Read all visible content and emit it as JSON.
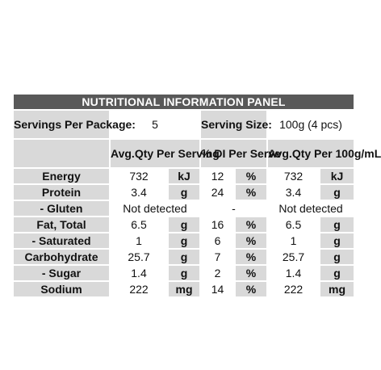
{
  "header": {
    "title": "NUTRITIONAL INFORMATION PANEL"
  },
  "servings": {
    "label": "Servings Per Package:",
    "value": "5"
  },
  "serving_size": {
    "label": "Serving Size:",
    "value": "100g (4 pcs)"
  },
  "columns": [
    "Avg.Qty Per Serving",
    "% DI Per Serve",
    "Avg.Qty Per 100g/mL"
  ],
  "rows": [
    {
      "name": "Energy",
      "cells": [
        "732",
        "kJ",
        "12",
        "%",
        "732",
        "kJ"
      ]
    },
    {
      "name": "Protein",
      "cells": [
        "3.4",
        "g",
        "24",
        "%",
        "3.4",
        "g"
      ]
    },
    {
      "name": "- Gluten",
      "cells": [
        "Not detected",
        "-",
        "Not detected"
      ]
    },
    {
      "name": "Fat, Total",
      "cells": [
        "6.5",
        "g",
        "16",
        "%",
        "6.5",
        "g"
      ]
    },
    {
      "name": "- Saturated",
      "cells": [
        "1",
        "g",
        "6",
        "%",
        "1",
        "g"
      ]
    },
    {
      "name": "Carbohydrate",
      "cells": [
        "25.7",
        "g",
        "7",
        "%",
        "25.7",
        "g"
      ]
    },
    {
      "name": "- Sugar",
      "cells": [
        "1.4",
        "g",
        "2",
        "%",
        "1.4",
        "g"
      ]
    },
    {
      "name": "Sodium",
      "cells": [
        "222",
        "mg",
        "14",
        "%",
        "222",
        "mg"
      ]
    }
  ]
}
